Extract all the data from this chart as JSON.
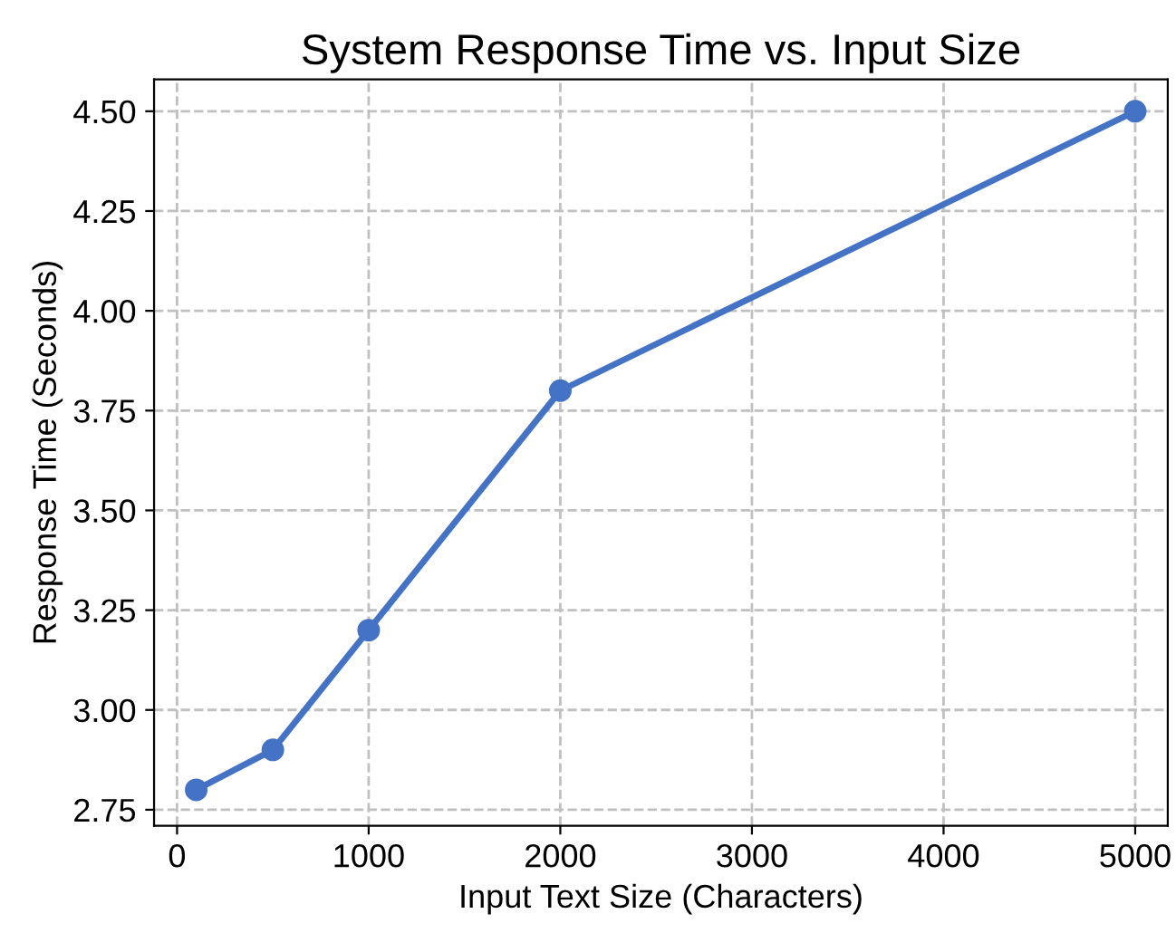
{
  "chart_data": {
    "type": "line",
    "title": "System Response Time vs. Input Size",
    "xlabel": "Input Text Size (Characters)",
    "ylabel": "Response Time (Seconds)",
    "x": [
      100,
      500,
      1000,
      2000,
      5000
    ],
    "series": [
      {
        "color": "#4472c4",
        "values": [
          2.8,
          2.9,
          3.2,
          3.8,
          4.5
        ]
      }
    ],
    "xlim": [
      -120,
      5170
    ],
    "xticks": [
      0,
      1000,
      2000,
      3000,
      4000,
      5000
    ],
    "ylim": [
      2.71,
      4.58
    ],
    "yticks": [
      {
        "value": 2.75,
        "label": "2.75"
      },
      {
        "value": 3.0,
        "label": "3.00"
      },
      {
        "value": 3.25,
        "label": "3.25"
      },
      {
        "value": 3.5,
        "label": "3.50"
      },
      {
        "value": 3.75,
        "label": "3.75"
      },
      {
        "value": 4.0,
        "label": "4.00"
      },
      {
        "value": 4.25,
        "label": "4.25"
      },
      {
        "value": 4.5,
        "label": "4.50"
      }
    ],
    "grid": true,
    "marker": "circle",
    "line_style": "solid"
  }
}
